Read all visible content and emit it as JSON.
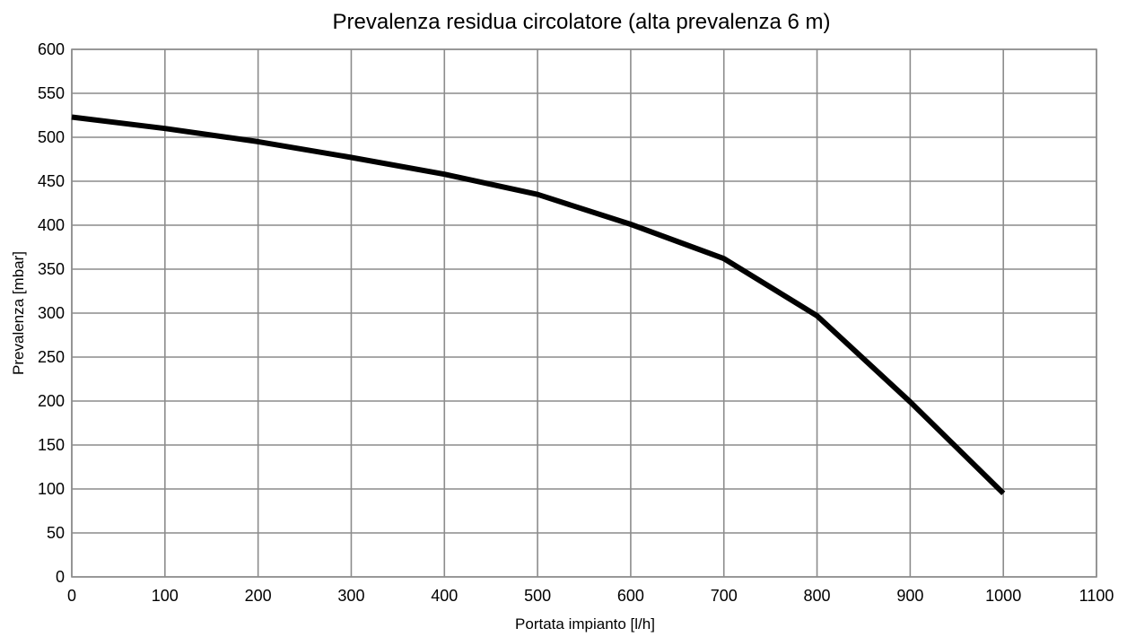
{
  "chart_data": {
    "type": "line",
    "title": "Prevalenza residua circolatore (alta prevalenza 6 m)",
    "xlabel": "Portata impianto [l/h]",
    "ylabel": "Prevalenza [mbar]",
    "xlim": [
      0,
      1100
    ],
    "ylim": [
      0,
      600
    ],
    "x_ticks": [
      0,
      100,
      200,
      300,
      400,
      500,
      600,
      700,
      800,
      900,
      1000,
      1100
    ],
    "y_ticks": [
      0,
      50,
      100,
      150,
      200,
      250,
      300,
      350,
      400,
      450,
      500,
      550,
      600
    ],
    "grid": true,
    "colors": {
      "series": "#000000",
      "grid": "#8c8c8c",
      "frame": "#8c8c8c"
    },
    "series": [
      {
        "x": [
          0,
          100,
          200,
          300,
          400,
          500,
          600,
          700,
          800,
          900,
          1000
        ],
        "y": [
          523,
          510,
          495,
          477,
          458,
          435,
          401,
          362,
          297,
          199,
          95
        ]
      }
    ]
  }
}
